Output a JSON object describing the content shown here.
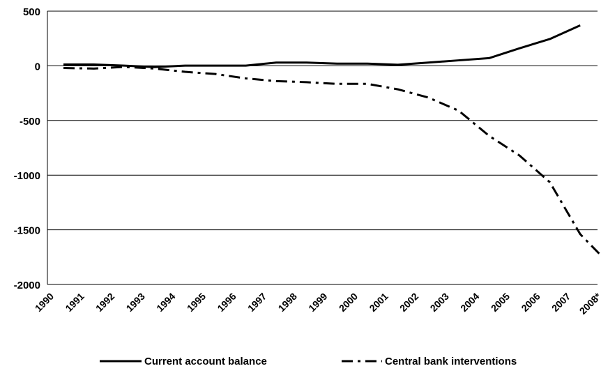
{
  "chart_data": {
    "type": "line",
    "title": "",
    "xlabel": "",
    "ylabel": "",
    "categories": [
      "1990",
      "1991",
      "1992",
      "1993",
      "1994",
      "1995",
      "1996",
      "1997",
      "1998",
      "1999",
      "2000",
      "2001",
      "2002",
      "2003",
      "2004",
      "2005",
      "2006",
      "2007",
      "2008*"
    ],
    "ylim": [
      -2000,
      500
    ],
    "yticks": [
      "500",
      "0",
      "-500",
      "-1000",
      "-1500",
      "-2000"
    ],
    "grid": "horizontal",
    "legend_position": "bottom",
    "series": [
      {
        "name": "Current account balance",
        "style": "solid",
        "color": "#000000",
        "values": [
          12,
          12,
          2,
          -12,
          2,
          2,
          2,
          30,
          30,
          20,
          20,
          10,
          30,
          50,
          70,
          160,
          245,
          370,
          null
        ]
      },
      {
        "name": "Central bank interventions",
        "style": "dash-dot",
        "color": "#000000",
        "values": [
          -20,
          -25,
          -10,
          -25,
          -55,
          -75,
          -115,
          -140,
          -150,
          -165,
          -165,
          -215,
          -290,
          -410,
          -640,
          -820,
          -1065,
          -1540,
          -1825
        ]
      }
    ]
  }
}
